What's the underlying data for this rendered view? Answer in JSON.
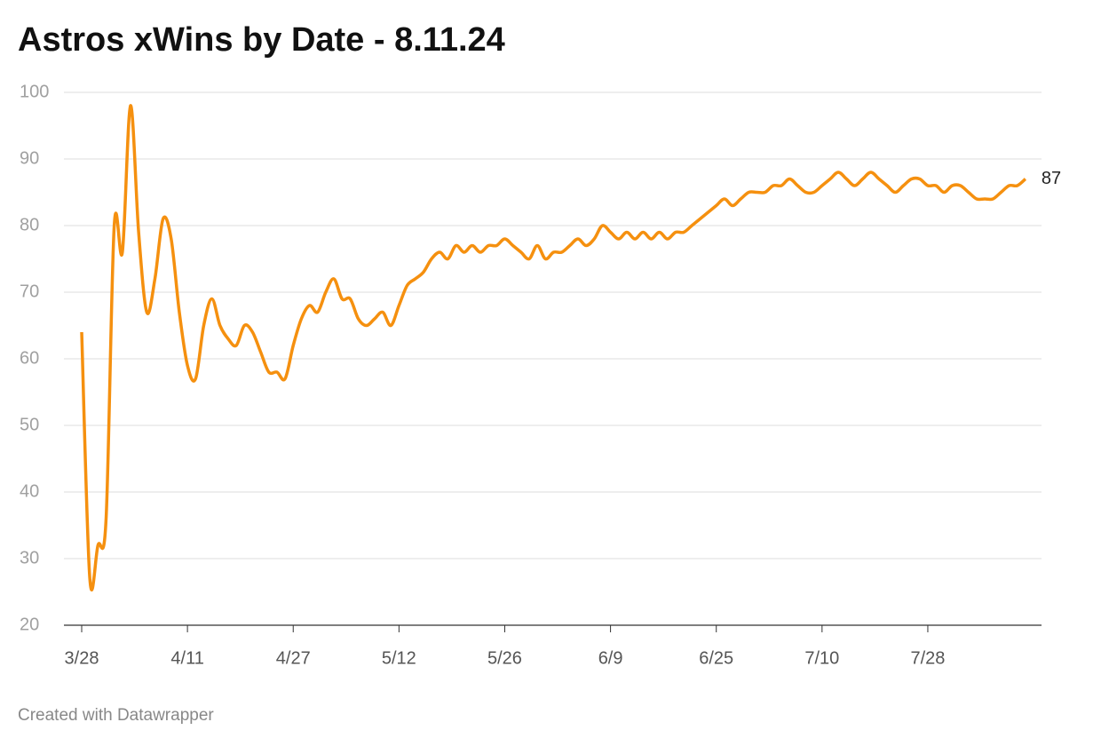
{
  "chart_data": {
    "type": "line",
    "title": "Astros xWins by Date - 8.11.24",
    "footer": "Created with Datawrapper",
    "categories": [
      "3/28",
      null,
      null,
      null,
      null,
      null,
      null,
      null,
      null,
      null,
      null,
      null,
      null,
      "4/11",
      null,
      null,
      null,
      null,
      null,
      null,
      null,
      null,
      null,
      null,
      null,
      null,
      "4/27",
      null,
      null,
      null,
      null,
      null,
      null,
      null,
      null,
      null,
      null,
      null,
      null,
      "5/12",
      null,
      null,
      null,
      null,
      null,
      null,
      null,
      null,
      null,
      null,
      null,
      null,
      "5/26",
      null,
      null,
      null,
      null,
      null,
      null,
      null,
      null,
      null,
      null,
      null,
      null,
      "6/9",
      null,
      null,
      null,
      null,
      null,
      null,
      null,
      null,
      null,
      null,
      null,
      null,
      "6/25",
      null,
      null,
      null,
      null,
      null,
      null,
      null,
      null,
      null,
      null,
      null,
      null,
      "7/10",
      null,
      null,
      null,
      null,
      null,
      null,
      null,
      null,
      null,
      null,
      null,
      null,
      "7/28",
      null,
      null,
      null,
      null,
      null,
      null,
      null,
      null,
      null,
      null,
      null,
      null
    ],
    "series": [
      {
        "color": "#f5900f",
        "values": [
          64,
          27,
          32,
          36,
          80,
          76,
          98,
          79,
          67,
          72,
          81,
          78,
          67,
          59,
          57,
          65,
          69,
          65,
          63,
          62,
          65,
          64,
          61,
          58,
          58,
          57,
          62,
          66,
          68,
          67,
          70,
          72,
          69,
          69,
          66,
          65,
          66,
          67,
          65,
          68,
          71,
          72,
          73,
          75,
          76,
          75,
          77,
          76,
          77,
          76,
          77,
          77,
          78,
          77,
          76,
          75,
          77,
          75,
          76,
          76,
          77,
          78,
          77,
          78,
          80,
          79,
          78,
          79,
          78,
          79,
          78,
          79,
          78,
          79,
          79,
          80,
          81,
          82,
          83,
          84,
          83,
          84,
          85,
          85,
          85,
          86,
          86,
          87,
          86,
          85,
          85,
          86,
          87,
          88,
          87,
          86,
          87,
          88,
          87,
          86,
          85,
          86,
          87,
          87,
          86,
          86,
          85,
          86,
          86,
          85,
          84,
          84,
          84,
          85,
          86,
          86,
          87
        ]
      }
    ],
    "ylim": [
      20,
      100
    ],
    "yticks": [
      20,
      30,
      40,
      50,
      60,
      70,
      80,
      90,
      100
    ],
    "grid": true
  }
}
